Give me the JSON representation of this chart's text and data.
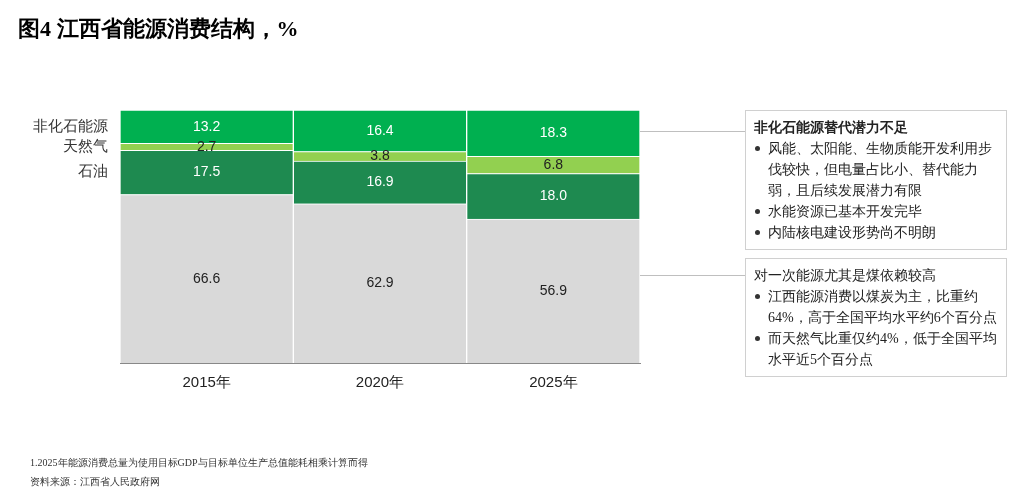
{
  "chart_data": {
    "type": "bar",
    "stacked": true,
    "title": "图4 江西省能源消费结构，%",
    "categories": [
      "2015年",
      "2020年",
      "2025年"
    ],
    "series": [
      {
        "color": "#d9d9d9",
        "values": [
          66.6,
          62.9,
          56.9
        ],
        "value_labels": [
          "66.6",
          "62.9",
          "56.9"
        ]
      },
      {
        "name": "石油",
        "color": "#1e8a50",
        "values": [
          17.5,
          16.9,
          18.0
        ],
        "value_labels": [
          "17.5",
          "16.9",
          "18.0"
        ]
      },
      {
        "name": "天然气",
        "color": "#92d050",
        "values": [
          2.7,
          3.8,
          6.8
        ],
        "value_labels": [
          "2.7",
          "3.8",
          "6.8"
        ]
      },
      {
        "name": "非化石能源",
        "color": "#00b050",
        "values": [
          13.2,
          16.4,
          18.3
        ],
        "value_labels": [
          "13.2",
          "16.4",
          "18.3"
        ]
      }
    ],
    "annotations": [
      "非化石能源替代潜力不足",
      "风能、太阳能、生物质能开发利用步伐较快，但电量占比小、替代能力弱，且后续发展潜力有限",
      "水能资源已基本开发完毕",
      "内陆核电建设形势尚不明朗",
      "对一次能源尤其是煤依赖较高",
      "江西能源消费以煤炭为主，比重约64%，高于全国平均水平约6个百分点",
      "而天然气比重仅约4%，低于全国平均水平近5个百分点",
      "1.2025年能源消费总量为使用目标GDP与目标单位生产总值能耗相乘计算而得",
      "资料来源：江西省人民政府网"
    ]
  }
}
